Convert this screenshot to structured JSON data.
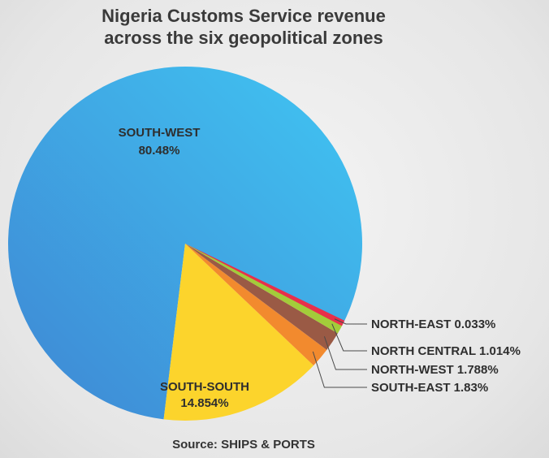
{
  "chart_data": {
    "type": "pie",
    "title_lines": [
      "Nigeria Customs Service revenue",
      "across the six geopolitical zones"
    ],
    "slices": [
      {
        "name": "SOUTH-WEST",
        "value": 80.48,
        "label": "80.48%",
        "color": "#3aa3e3"
      },
      {
        "name": "SOUTH-SOUTH",
        "value": 14.854,
        "label": "14.854%",
        "color": "#fcd42c"
      },
      {
        "name": "SOUTH-EAST",
        "value": 1.83,
        "label": "SOUTH-EAST 1.83%",
        "color": "#f28a2e"
      },
      {
        "name": "NORTH-WEST",
        "value": 1.788,
        "label": "NORTH-WEST 1.788%",
        "color": "#9a5a45"
      },
      {
        "name": "NORTH CENTRAL",
        "value": 1.014,
        "label": "NORTH CENTRAL 1.014%",
        "color": "#a3cc3a"
      },
      {
        "name": "NORTH-EAST",
        "value": 0.033,
        "label": "NORTH-EAST 0.033%",
        "color": "#e8304a"
      }
    ],
    "source": "Source: SHIPS & PORTS"
  }
}
